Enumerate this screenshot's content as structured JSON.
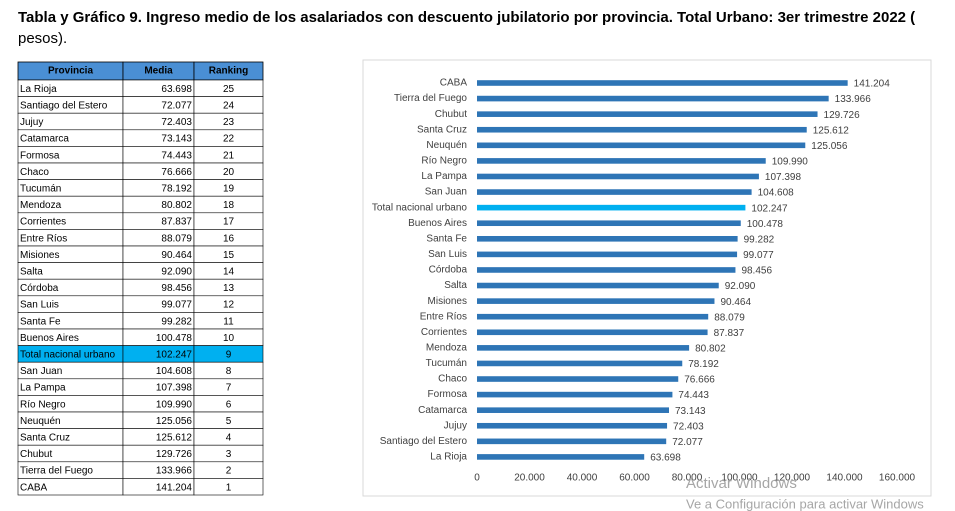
{
  "title": [
    "Tabla y Gráfico 9. Ingreso medio de los asalariados con descuento jubilatorio por provincia. Total Urbano: 3er trimestre 2022 (",
    "pesos)."
  ],
  "table": {
    "header": [
      "Provincia",
      "Media",
      "Ranking"
    ],
    "rows": [
      [
        "La Rioja",
        "63.698",
        25
      ],
      [
        "Santiago del Estero",
        "72.077",
        24
      ],
      [
        "Jujuy",
        "72.403",
        23
      ],
      [
        "Catamarca",
        "73.143",
        22
      ],
      [
        "Formosa",
        "74.443",
        21
      ],
      [
        "Chaco",
        "76.666",
        20
      ],
      [
        "Tucumán",
        "78.192",
        19
      ],
      [
        "Mendoza",
        "80.802",
        18
      ],
      [
        "Corrientes",
        "87.837",
        17
      ],
      [
        "Entre Ríos",
        "88.079",
        16
      ],
      [
        "Misiones",
        "90.464",
        15
      ],
      [
        "Salta",
        "92.090",
        14
      ],
      [
        "Córdoba",
        "98.456",
        13
      ],
      [
        "San Luis",
        "99.077",
        12
      ],
      [
        "Santa Fe",
        "99.282",
        11
      ],
      [
        "Buenos Aires",
        "100.478",
        10
      ],
      [
        "Total nacional urbano",
        "102.247",
        9
      ],
      [
        "San Juan",
        "104.608",
        8
      ],
      [
        "La Pampa",
        "107.398",
        7
      ],
      [
        "Río Negro",
        "109.990",
        6
      ],
      [
        "Neuquén",
        "125.056",
        5
      ],
      [
        "Santa Cruz",
        "125.612",
        4
      ],
      [
        "Chubut",
        "129.726",
        3
      ],
      [
        "Tierra del Fuego",
        "133.966",
        2
      ],
      [
        "CABA",
        "141.204",
        1
      ]
    ],
    "highlight_row": 16
  },
  "chart_data": {
    "type": "barh",
    "categories": [
      "CABA",
      "Tierra del Fuego",
      "Chubut",
      "Santa Cruz",
      "Neuquén",
      "Río Negro",
      "La Pampa",
      "San Juan",
      "Total nacional urbano",
      "Buenos Aires",
      "Santa Fe",
      "San Luis",
      "Córdoba",
      "Salta",
      "Misiones",
      "Entre Ríos",
      "Corrientes",
      "Mendoza",
      "Tucumán",
      "Chaco",
      "Formosa",
      "Catamarca",
      "Jujuy",
      "Santiago del Estero",
      "La Rioja"
    ],
    "values": [
      141204,
      133966,
      129726,
      125612,
      125056,
      109990,
      107398,
      104608,
      102247,
      100478,
      99282,
      99077,
      98456,
      92090,
      90464,
      88079,
      87837,
      80802,
      78192,
      76666,
      74443,
      73143,
      72403,
      72077,
      63698
    ],
    "value_labels": [
      "141.204",
      "133.966",
      "129.726",
      "125.612",
      "125.056",
      "109.990",
      "107.398",
      "104.608",
      "102.247",
      "100.478",
      "99.282",
      "99.077",
      "98.456",
      "92.090",
      "90.464",
      "88.079",
      "87.837",
      "80.802",
      "78.192",
      "76.666",
      "74.443",
      "73.143",
      "72.403",
      "72.077",
      "63.698"
    ],
    "colors": [
      "#2e75b6",
      "#2e75b6",
      "#2e75b6",
      "#2e75b6",
      "#2e75b6",
      "#2e75b6",
      "#2e75b6",
      "#2e75b6",
      "#00b0f0",
      "#2e75b6",
      "#2e75b6",
      "#2e75b6",
      "#2e75b6",
      "#2e75b6",
      "#2e75b6",
      "#2e75b6",
      "#2e75b6",
      "#2e75b6",
      "#2e75b6",
      "#2e75b6",
      "#2e75b6",
      "#2e75b6",
      "#2e75b6",
      "#2e75b6",
      "#2e75b6"
    ],
    "xlim": [
      0,
      160000
    ],
    "xticks": [
      0,
      {
        "value": 20000,
        "label": "20.000"
      },
      {
        "value": 40000,
        "label": "40.000"
      },
      {
        "value": 60000,
        "label": "60.000"
      },
      {
        "value": 80000,
        "label": "80.000"
      },
      {
        "value": 100000,
        "label": "100.000"
      },
      {
        "value": 120000,
        "label": "120.000"
      },
      {
        "value": 140000,
        "label": "140.000"
      },
      {
        "value": 160000,
        "label": "160.000"
      }
    ]
  },
  "watermark": [
    "Activar Windows",
    "Ve a Configuración para activar Windows"
  ]
}
